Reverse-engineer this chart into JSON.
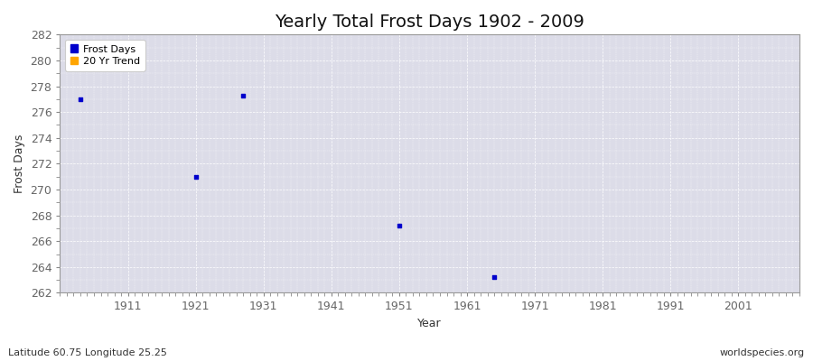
{
  "title": "Yearly Total Frost Days 1902 - 2009",
  "xlabel": "Year",
  "ylabel": "Frost Days",
  "xlim": [
    1901,
    2010
  ],
  "ylim": [
    262,
    282
  ],
  "yticks": [
    262,
    264,
    266,
    268,
    270,
    272,
    274,
    276,
    278,
    280,
    282
  ],
  "xticks": [
    1911,
    1921,
    1931,
    1941,
    1951,
    1961,
    1971,
    1981,
    1991,
    2001
  ],
  "data_x": [
    1904,
    1921,
    1928,
    1951,
    1965
  ],
  "data_y": [
    277.0,
    271.0,
    277.3,
    267.2,
    263.2
  ],
  "point_color": "#0000cc",
  "point_marker": "s",
  "point_size": 8,
  "plot_bg_color": "#dcdce8",
  "fig_bg_color": "#ffffff",
  "legend_labels": [
    "Frost Days",
    "20 Yr Trend"
  ],
  "legend_colors": [
    "#0000cc",
    "#ffa500"
  ],
  "bottom_left": "Latitude 60.75 Longitude 25.25",
  "bottom_right": "worldspecies.org",
  "grid_color": "#ffffff",
  "grid_linestyle": "--",
  "grid_linewidth": 0.5,
  "title_fontsize": 14,
  "axis_label_fontsize": 9,
  "tick_label_fontsize": 9
}
